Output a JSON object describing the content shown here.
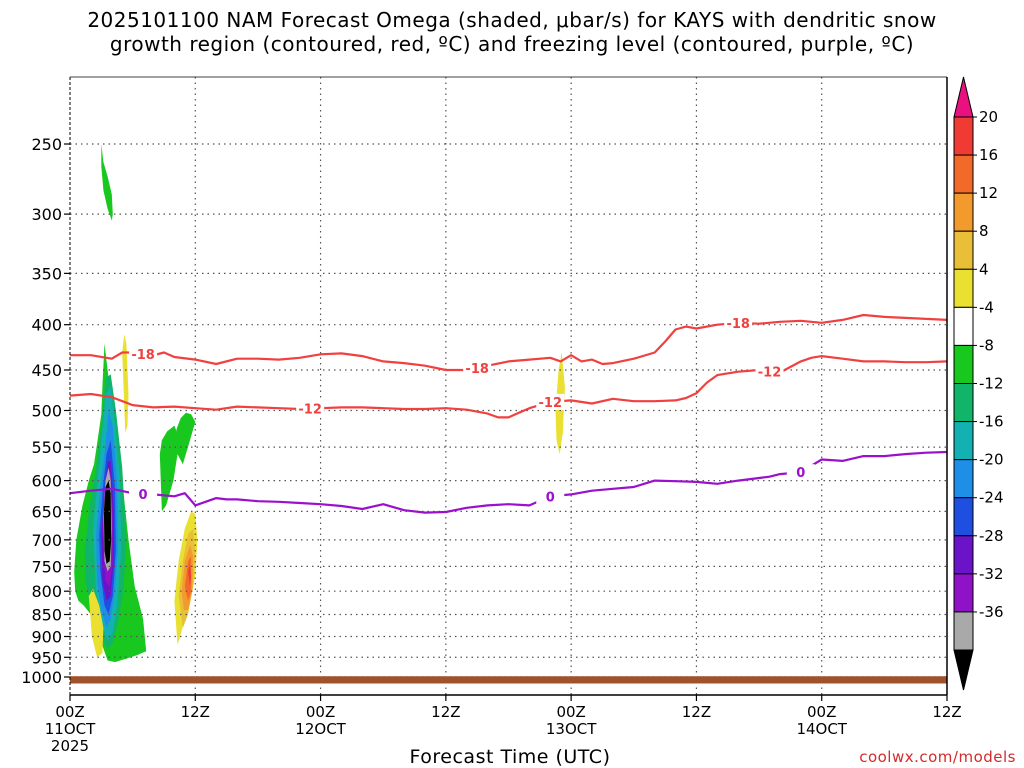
{
  "chart_data": {
    "type": "time-height",
    "title_lines": [
      "2025101100 NAM Forecast Omega (shaded, μbar/s) for KAYS with dendritic snow",
      "growth region (contoured, red, ºC) and freezing level (contoured, purple, ºC)"
    ],
    "xlabel": "Forecast Time (UTC)",
    "ylabel": "",
    "xlim_hours": [
      0,
      84
    ],
    "ylim_hPa": [
      200,
      1050
    ],
    "x_ticks": [
      {
        "h": 0,
        "lines": [
          "00Z",
          "11OCT",
          "2025"
        ]
      },
      {
        "h": 12,
        "lines": [
          "12Z"
        ]
      },
      {
        "h": 24,
        "lines": [
          "00Z",
          "12OCT"
        ]
      },
      {
        "h": 36,
        "lines": [
          "12Z"
        ]
      },
      {
        "h": 48,
        "lines": [
          "00Z",
          "13OCT"
        ]
      },
      {
        "h": 60,
        "lines": [
          "12Z"
        ]
      },
      {
        "h": 72,
        "lines": [
          "00Z",
          "14OCT"
        ]
      },
      {
        "h": 84,
        "lines": [
          "12Z"
        ]
      }
    ],
    "y_ticks": [
      250,
      300,
      350,
      400,
      450,
      500,
      550,
      600,
      650,
      700,
      750,
      800,
      850,
      900,
      950,
      1000
    ],
    "colorbar": {
      "labels": [
        "20",
        "16",
        "12",
        "8",
        "4",
        "-4",
        "-8",
        "-12",
        "-16",
        "-20",
        "-24",
        "-28",
        "-32",
        "-36"
      ],
      "colors": [
        "#e8117f",
        "#ef3b34",
        "#f26a2a",
        "#f39a2d",
        "#e8bf36",
        "#e9e031",
        "#ffffff",
        "#19c81e",
        "#10b569",
        "#14b1b3",
        "#1e8fe6",
        "#1f4fe0",
        "#6b13c8",
        "#8f12c6",
        "#a9a9a9",
        "#000000"
      ]
    },
    "contours": [
      {
        "name": "minus18",
        "label": "-18",
        "color": "#f04040",
        "x": [
          0,
          2,
          4,
          5,
          6,
          8,
          9,
          10,
          12,
          14,
          16,
          18,
          20,
          22,
          24,
          26,
          28,
          30,
          32,
          34,
          36,
          38,
          40,
          42,
          44,
          46,
          47,
          48,
          49,
          50,
          51,
          52,
          54,
          56,
          57,
          58,
          59,
          60,
          62,
          64,
          66,
          68,
          70,
          72,
          74,
          76,
          78,
          80,
          82,
          84
        ],
        "y": [
          433,
          433,
          437,
          430,
          430,
          433,
          430,
          435,
          438,
          443,
          437,
          437,
          438,
          436,
          432,
          431,
          434,
          440,
          442,
          445,
          450,
          450,
          445,
          440,
          438,
          436,
          440,
          433,
          440,
          438,
          443,
          442,
          437,
          430,
          418,
          405,
          402,
          404,
          400,
          398,
          399,
          397,
          396,
          398,
          395,
          390,
          392,
          393,
          394,
          395
        ],
        "labels_at": [
          {
            "h": 7,
            "p": 432
          },
          {
            "h": 39,
            "p": 449
          },
          {
            "h": 64,
            "p": 398
          }
        ]
      },
      {
        "name": "minus12",
        "label": "-12",
        "color": "#f04040",
        "x": [
          0,
          2,
          4,
          6,
          8,
          10,
          12,
          14,
          16,
          18,
          20,
          22,
          24,
          26,
          28,
          30,
          32,
          34,
          36,
          38,
          40,
          41,
          42,
          43,
          44,
          46,
          48,
          50,
          52,
          54,
          56,
          58,
          59,
          60,
          61,
          62,
          64,
          66,
          68,
          70,
          71,
          72,
          74,
          76,
          78,
          80,
          82,
          84
        ],
        "y": [
          481,
          479,
          483,
          493,
          496,
          495,
          497,
          499,
          495,
          496,
          497,
          498,
          497,
          496,
          496,
          497,
          498,
          498,
          497,
          499,
          504,
          509,
          509,
          503,
          497,
          489,
          487,
          491,
          485,
          488,
          488,
          487,
          484,
          478,
          465,
          456,
          452,
          450,
          453,
          440,
          436,
          434,
          437,
          440,
          440,
          441,
          441,
          440
        ],
        "labels_at": [
          {
            "h": 23,
            "p": 497
          },
          {
            "h": 46,
            "p": 489
          },
          {
            "h": 67,
            "p": 452
          }
        ]
      },
      {
        "name": "freezing",
        "label": "0",
        "color": "#9a10cc",
        "x": [
          0,
          2,
          4,
          6,
          8,
          10,
          11,
          12,
          14,
          15,
          16,
          18,
          20,
          22,
          24,
          26,
          28,
          30,
          32,
          34,
          36,
          38,
          40,
          42,
          44,
          46,
          48,
          50,
          52,
          54,
          56,
          58,
          60,
          62,
          64,
          66,
          67,
          68,
          70,
          72,
          74,
          76,
          78,
          80,
          82,
          84
        ],
        "y": [
          620,
          616,
          613,
          620,
          622,
          625,
          620,
          640,
          628,
          630,
          630,
          633,
          634,
          636,
          638,
          641,
          646,
          638,
          648,
          652,
          651,
          644,
          640,
          638,
          640,
          625,
          622,
          616,
          613,
          610,
          600,
          601,
          602,
          605,
          600,
          596,
          594,
          590,
          587,
          568,
          570,
          563,
          563,
          560,
          558,
          557
        ],
        "labels_at": [
          {
            "h": 7,
            "p": 620
          },
          {
            "h": 46,
            "p": 622
          },
          {
            "h": 70,
            "p": 566
          }
        ]
      }
    ],
    "omega_features": [
      {
        "color": "#19c81e",
        "x": [
          3.0,
          3.2,
          3.6,
          4.0,
          4.1,
          4.0,
          3.6,
          3.2,
          3.0
        ],
        "y": [
          250,
          262,
          272,
          285,
          300,
          305,
          296,
          282,
          265
        ]
      },
      {
        "color": "#19c81e",
        "x": [
          0.4,
          0.6,
          1.2,
          1.8,
          2.3,
          2.6,
          3.0,
          3.1,
          3.3,
          3.6,
          3.9,
          4.4,
          5.0,
          5.6,
          6.2,
          7.0,
          7.3,
          6.4,
          5.2,
          4.3,
          3.6,
          2.8,
          2.0,
          1.3,
          0.8,
          0.5,
          0.4
        ],
        "y": [
          760,
          700,
          640,
          600,
          575,
          545,
          505,
          470,
          420,
          450,
          480,
          520,
          600,
          700,
          790,
          860,
          935,
          945,
          955,
          962,
          958,
          900,
          850,
          830,
          820,
          800,
          760
        ]
      },
      {
        "color": "#ffffff",
        "x": [
          2.0,
          2.2,
          2.6,
          2.9,
          3.1,
          2.9,
          2.5,
          2.1,
          2.0
        ],
        "y": [
          650,
          650,
          655,
          650,
          740,
          800,
          820,
          790,
          650
        ]
      },
      {
        "color": "#19c81e",
        "x": [
          8.6,
          8.8,
          9.3,
          10.0,
          10.4,
          10.3,
          9.9,
          9.2,
          8.8,
          8.6
        ],
        "y": [
          560,
          540,
          528,
          520,
          535,
          560,
          600,
          640,
          650,
          560
        ]
      },
      {
        "color": "#19c81e",
        "x": [
          10.2,
          10.6,
          11.1,
          11.6,
          12.0,
          11.4,
          10.8,
          10.3,
          10.2
        ],
        "y": [
          525,
          510,
          503,
          505,
          515,
          545,
          575,
          560,
          525
        ]
      },
      {
        "color": "#10b569",
        "x": [
          1.4,
          1.9,
          2.4,
          3.0,
          3.4,
          3.9,
          4.4,
          5.0,
          5.4,
          5.1,
          4.6,
          4.1,
          3.6,
          3.0,
          2.4,
          1.9,
          1.5,
          1.4
        ],
        "y": [
          720,
          640,
          590,
          520,
          460,
          455,
          500,
          580,
          700,
          800,
          870,
          915,
          930,
          905,
          860,
          820,
          780,
          720
        ]
      },
      {
        "color": "#14b1b3",
        "x": [
          2.2,
          2.6,
          3.0,
          3.4,
          3.9,
          4.3,
          4.8,
          4.9,
          4.5,
          4.1,
          3.6,
          3.0,
          2.5,
          2.2
        ],
        "y": [
          680,
          610,
          545,
          480,
          470,
          520,
          600,
          720,
          830,
          890,
          910,
          870,
          800,
          680
        ]
      },
      {
        "color": "#1e8fe6",
        "x": [
          2.5,
          2.9,
          3.3,
          3.7,
          4.1,
          4.5,
          4.6,
          4.3,
          3.9,
          3.5,
          3.0,
          2.6,
          2.5
        ],
        "y": [
          690,
          610,
          560,
          500,
          520,
          600,
          710,
          800,
          860,
          880,
          840,
          780,
          690
        ]
      },
      {
        "color": "#1f4fe0",
        "x": [
          2.8,
          3.1,
          3.5,
          3.9,
          4.3,
          4.4,
          4.1,
          3.7,
          3.3,
          2.9,
          2.8
        ],
        "y": [
          690,
          620,
          560,
          540,
          610,
          720,
          810,
          850,
          830,
          760,
          690
        ]
      },
      {
        "color": "#6b13c8",
        "x": [
          3.0,
          3.3,
          3.6,
          3.9,
          4.2,
          4.2,
          3.9,
          3.5,
          3.1,
          3.0
        ],
        "y": [
          690,
          620,
          570,
          570,
          650,
          740,
          810,
          820,
          780,
          690
        ]
      },
      {
        "color": "#8f12c6",
        "x": [
          3.1,
          3.3,
          3.6,
          3.9,
          4.1,
          4.1,
          3.8,
          3.4,
          3.1
        ],
        "y": [
          680,
          615,
          580,
          590,
          660,
          740,
          790,
          780,
          680
        ]
      },
      {
        "color": "#a9a9a9",
        "x": [
          3.2,
          3.4,
          3.7,
          3.9,
          4.0,
          3.9,
          3.6,
          3.3,
          3.2
        ],
        "y": [
          660,
          600,
          580,
          600,
          680,
          750,
          760,
          740,
          660
        ]
      },
      {
        "color": "#000000",
        "x": [
          3.25,
          3.4,
          3.7,
          3.9,
          3.95,
          3.8,
          3.5,
          3.3,
          3.25
        ],
        "y": [
          650,
          610,
          600,
          620,
          700,
          740,
          745,
          720,
          650
        ]
      },
      {
        "color": "#e9e031",
        "x": [
          5.0,
          5.2,
          5.4,
          5.6,
          5.5,
          5.3,
          5.0
        ],
        "y": [
          430,
          410,
          420,
          480,
          520,
          530,
          430
        ]
      },
      {
        "color": "#e9e031",
        "x": [
          1.8,
          2.2,
          2.8,
          3.2,
          3.1,
          2.6,
          2.1,
          1.8
        ],
        "y": [
          810,
          795,
          830,
          880,
          940,
          950,
          900,
          810
        ]
      },
      {
        "color": "#e9e031",
        "x": [
          10.0,
          10.4,
          11.0,
          11.6,
          12.0,
          12.2,
          12.0,
          11.5,
          10.9,
          10.3,
          10.0
        ],
        "y": [
          820,
          740,
          680,
          650,
          655,
          700,
          770,
          820,
          870,
          920,
          820
        ]
      },
      {
        "color": "#e8bf36",
        "x": [
          10.4,
          10.8,
          11.3,
          11.8,
          12.0,
          11.8,
          11.3,
          10.8,
          10.4
        ],
        "y": [
          810,
          740,
          690,
          680,
          720,
          790,
          850,
          880,
          810
        ]
      },
      {
        "color": "#f39a2d",
        "x": [
          10.7,
          11.0,
          11.5,
          11.8,
          11.7,
          11.3,
          10.9,
          10.7
        ],
        "y": [
          800,
          740,
          710,
          730,
          800,
          840,
          840,
          800
        ]
      },
      {
        "color": "#f26a2a",
        "x": [
          11.0,
          11.3,
          11.6,
          11.6,
          11.3,
          11.0
        ],
        "y": [
          790,
          740,
          730,
          800,
          820,
          790
        ]
      },
      {
        "color": "#ef3b34",
        "x": [
          11.3,
          11.5,
          11.6,
          11.5,
          11.3
        ],
        "y": [
          760,
          745,
          770,
          790,
          760
        ]
      },
      {
        "color": "#e9e031",
        "x": [
          46.5,
          46.8,
          47.1,
          47.4,
          47.2,
          46.9,
          46.6,
          46.5
        ],
        "y": [
          500,
          450,
          430,
          470,
          530,
          560,
          540,
          500
        ]
      }
    ],
    "ground": {
      "color": "#a0522d",
      "top_hPa": 998,
      "bottom_hPa": 1017
    }
  },
  "watermark": "coolwx.com/models"
}
